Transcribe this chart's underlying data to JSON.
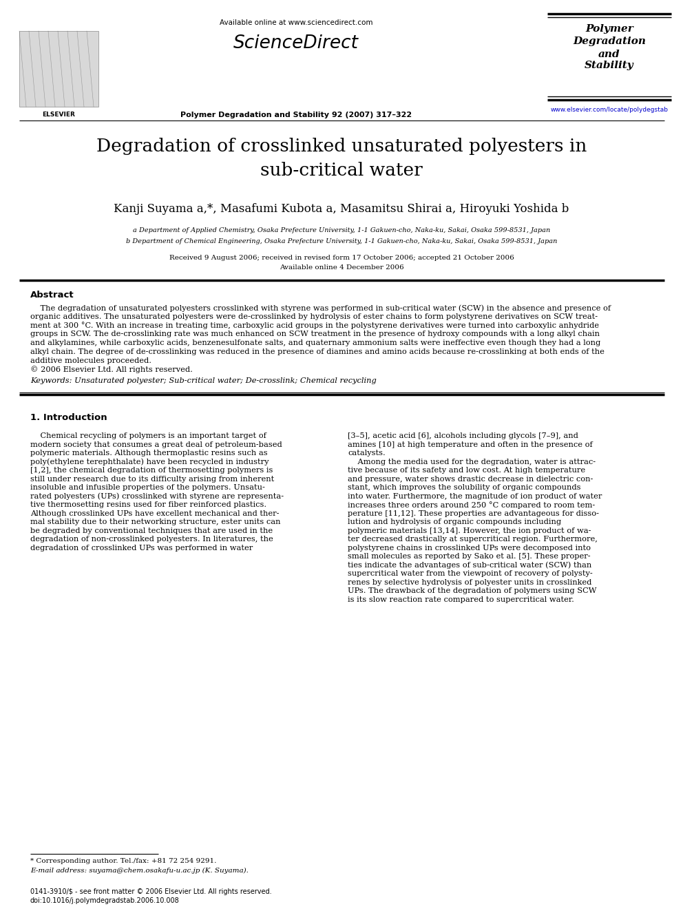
{
  "bg_color": "#ffffff",
  "available_online": "Available online at www.sciencedirect.com",
  "journal_name_bold": "Polymer Degradation and Stability 92 (2007) 317–322",
  "sciencedirect_text": "ScienceDirect",
  "journal_box_lines": [
    "Polymer",
    "Degradation",
    "and",
    "Stability"
  ],
  "journal_url": "www.elsevier.com/locate/polydegstab",
  "title": "Degradation of crosslinked unsaturated polyesters in\nsub-critical water",
  "authors": "Kanji Suyama a,*, Masafumi Kubota a, Masamitsu Shirai a, Hiroyuki Yoshida b",
  "affil_a": "a Department of Applied Chemistry, Osaka Prefecture University, 1-1 Gakuen-cho, Naka-ku, Sakai, Osaka 599-8531, Japan",
  "affil_b": "b Department of Chemical Engineering, Osaka Prefecture University, 1-1 Gakuen-cho, Naka-ku, Sakai, Osaka 599-8531, Japan",
  "received": "Received 9 August 2006; received in revised form 17 October 2006; accepted 21 October 2006",
  "available": "Available online 4 December 2006",
  "abstract_title": "Abstract",
  "abstract_lines": [
    "    The degradation of unsaturated polyesters crosslinked with styrene was performed in sub-critical water (SCW) in the absence and presence of",
    "organic additives. The unsaturated polyesters were de-crosslinked by hydrolysis of ester chains to form polystyrene derivatives on SCW treat-",
    "ment at 300 °C. With an increase in treating time, carboxylic acid groups in the polystyrene derivatives were turned into carboxylic anhydride",
    "groups in SCW. The de-crosslinking rate was much enhanced on SCW treatment in the presence of hydroxy compounds with a long alkyl chain",
    "and alkylamines, while carboxylic acids, benzenesulfonate salts, and quaternary ammonium salts were ineffective even though they had a long",
    "alkyl chain. The degree of de-crosslinking was reduced in the presence of diamines and amino acids because re-crosslinking at both ends of the",
    "additive molecules proceeded.",
    "© 2006 Elsevier Ltd. All rights reserved."
  ],
  "keywords": "Keywords: Unsaturated polyester; Sub-critical water; De-crosslink; Chemical recycling",
  "section1_title": "1. Introduction",
  "col1_lines": [
    "    Chemical recycling of polymers is an important target of",
    "modern society that consumes a great deal of petroleum-based",
    "polymeric materials. Although thermoplastic resins such as",
    "poly(ethylene terephthalate) have been recycled in industry",
    "[1,2], the chemical degradation of thermosetting polymers is",
    "still under research due to its difficulty arising from inherent",
    "insoluble and infusible properties of the polymers. Unsatu-",
    "rated polyesters (UPs) crosslinked with styrene are representa-",
    "tive thermosetting resins used for fiber reinforced plastics.",
    "Although crosslinked UPs have excellent mechanical and ther-",
    "mal stability due to their networking structure, ester units can",
    "be degraded by conventional techniques that are used in the",
    "degradation of non-crosslinked polyesters. In literatures, the",
    "degradation of crosslinked UPs was performed in water"
  ],
  "col2_lines": [
    "[3–5], acetic acid [6], alcohols including glycols [7–9], and",
    "amines [10] at high temperature and often in the presence of",
    "catalysts.",
    "    Among the media used for the degradation, water is attrac-",
    "tive because of its safety and low cost. At high temperature",
    "and pressure, water shows drastic decrease in dielectric con-",
    "stant, which improves the solubility of organic compounds",
    "into water. Furthermore, the magnitude of ion product of water",
    "increases three orders around 250 °C compared to room tem-",
    "perature [11,12]. These properties are advantageous for disso-",
    "lution and hydrolysis of organic compounds including",
    "polymeric materials [13,14]. However, the ion product of wa-",
    "ter decreased drastically at supercritical region. Furthermore,",
    "polystyrene chains in crosslinked UPs were decomposed into",
    "small molecules as reported by Sako et al. [5]. These proper-",
    "ties indicate the advantages of sub-critical water (SCW) than",
    "supercritical water from the viewpoint of recovery of polysty-",
    "renes by selective hydrolysis of polyester units in crosslinked",
    "UPs. The drawback of the degradation of polymers using SCW",
    "is its slow reaction rate compared to supercritical water."
  ],
  "footnote_star": "* Corresponding author. Tel./fax: +81 72 254 9291.",
  "footnote_email": "E-mail address: suyama@chem.osakafu-u.ac.jp (K. Suyama).",
  "footer_issn": "0141-3910/$ - see front matter © 2006 Elsevier Ltd. All rights reserved.",
  "footer_doi": "doi:10.1016/j.polymdegradstab.2006.10.008"
}
